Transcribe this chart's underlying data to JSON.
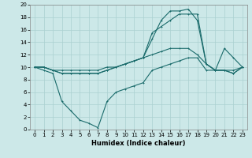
{
  "xlabel": "Humidex (Indice chaleur)",
  "bg_color": "#cce8e8",
  "grid_color": "#aad0d0",
  "line_color": "#1a6b6b",
  "xlim": [
    -0.5,
    23.5
  ],
  "ylim": [
    0,
    20
  ],
  "xticks": [
    0,
    1,
    2,
    3,
    4,
    5,
    6,
    7,
    8,
    9,
    10,
    11,
    12,
    13,
    14,
    15,
    16,
    17,
    18,
    19,
    20,
    21,
    22,
    23
  ],
  "yticks": [
    0,
    2,
    4,
    6,
    8,
    10,
    12,
    14,
    16,
    18,
    20
  ],
  "line1_x": [
    0,
    1,
    2,
    3,
    4,
    5,
    6,
    7,
    8,
    9,
    10,
    11,
    12,
    13,
    14,
    15,
    16,
    17,
    18,
    19,
    20,
    21,
    22,
    23
  ],
  "line1_y": [
    10,
    9.5,
    9.0,
    4.5,
    3.0,
    1.5,
    1.0,
    0.3,
    4.5,
    6.0,
    6.5,
    7.0,
    7.5,
    9.5,
    10.0,
    10.5,
    11.0,
    11.5,
    11.5,
    9.5,
    9.5,
    13.0,
    11.5,
    10.0
  ],
  "line2_x": [
    0,
    1,
    2,
    3,
    4,
    5,
    6,
    7,
    8,
    9,
    10,
    11,
    12,
    13,
    14,
    15,
    16,
    17,
    18,
    19,
    20,
    21,
    22,
    23
  ],
  "line2_y": [
    10,
    10,
    9.5,
    9.5,
    9.5,
    9.5,
    9.5,
    9.5,
    10.0,
    10.0,
    10.5,
    11.0,
    11.5,
    12.0,
    12.5,
    13.0,
    13.0,
    13.0,
    12.0,
    10.5,
    9.5,
    9.5,
    9.5,
    10.0
  ],
  "line3_x": [
    0,
    1,
    2,
    3,
    4,
    5,
    6,
    7,
    8,
    9,
    10,
    11,
    12,
    13,
    14,
    15,
    16,
    17,
    18,
    19,
    20,
    21,
    22,
    23
  ],
  "line3_y": [
    10,
    10,
    9.5,
    9.0,
    9.0,
    9.0,
    9.0,
    9.0,
    9.5,
    10.0,
    10.5,
    11.0,
    11.5,
    14.5,
    17.5,
    19.0,
    19.0,
    19.3,
    17.5,
    10.5,
    9.5,
    9.5,
    9.0,
    10.0
  ],
  "line4_x": [
    0,
    1,
    2,
    3,
    4,
    5,
    6,
    7,
    8,
    9,
    10,
    11,
    12,
    13,
    14,
    15,
    16,
    17,
    18,
    19,
    20,
    21,
    22,
    23
  ],
  "line4_y": [
    10,
    10,
    9.5,
    9.0,
    9.0,
    9.0,
    9.0,
    9.0,
    9.5,
    10.0,
    10.5,
    11.0,
    11.5,
    15.5,
    16.5,
    17.5,
    18.5,
    18.5,
    18.5,
    10.5,
    9.5,
    9.5,
    9.0,
    10.0
  ],
  "xlabel_fontsize": 6,
  "tick_fontsize": 5,
  "lw": 0.8,
  "marker_size": 2
}
